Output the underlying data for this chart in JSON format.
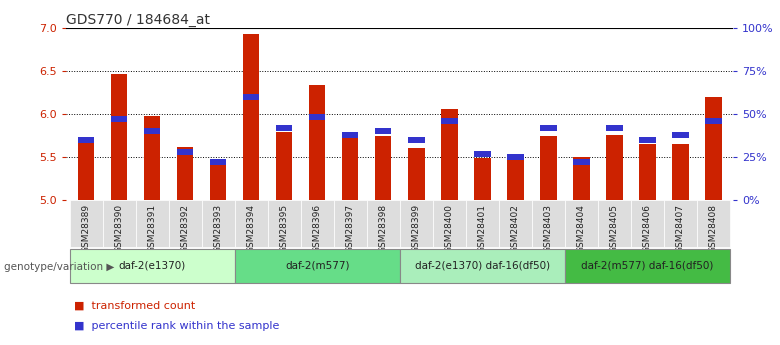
{
  "title": "GDS770 / 184684_at",
  "samples": [
    "GSM28389",
    "GSM28390",
    "GSM28391",
    "GSM28392",
    "GSM28393",
    "GSM28394",
    "GSM28395",
    "GSM28396",
    "GSM28397",
    "GSM28398",
    "GSM28399",
    "GSM28400",
    "GSM28401",
    "GSM28402",
    "GSM28403",
    "GSM28404",
    "GSM28405",
    "GSM28406",
    "GSM28407",
    "GSM28408"
  ],
  "transformed_count": [
    5.68,
    6.46,
    5.97,
    5.62,
    5.44,
    6.93,
    5.79,
    6.33,
    5.75,
    5.74,
    5.6,
    6.06,
    5.49,
    5.51,
    5.74,
    5.5,
    5.76,
    5.65,
    5.65,
    6.2
  ],
  "percentile_rank": [
    35,
    47,
    40,
    28,
    22,
    60,
    42,
    48,
    38,
    40,
    35,
    46,
    27,
    25,
    42,
    22,
    42,
    35,
    38,
    46
  ],
  "ylim_left": [
    5.0,
    7.0
  ],
  "ylim_right": [
    0,
    100
  ],
  "yticks_left": [
    5.0,
    5.5,
    6.0,
    6.5,
    7.0
  ],
  "yticks_right": [
    0,
    25,
    50,
    75,
    100
  ],
  "ytick_labels_right": [
    "0%",
    "25%",
    "50%",
    "75%",
    "100%"
  ],
  "groups": [
    {
      "label": "daf-2(e1370)",
      "start": 0,
      "end": 5,
      "color": "#ccffcc"
    },
    {
      "label": "daf-2(m577)",
      "start": 5,
      "end": 10,
      "color": "#66dd88"
    },
    {
      "label": "daf-2(e1370) daf-16(df50)",
      "start": 10,
      "end": 15,
      "color": "#aaeebb"
    },
    {
      "label": "daf-2(m577) daf-16(df50)",
      "start": 15,
      "end": 20,
      "color": "#44bb44"
    }
  ],
  "bar_color_red": "#cc2200",
  "bar_color_blue": "#3333cc",
  "bar_width": 0.5,
  "bar_base": 5.0,
  "left_axis_color": "#cc2200",
  "right_axis_color": "#3333cc",
  "legend_items": [
    "transformed count",
    "percentile rank within the sample"
  ],
  "legend_colors": [
    "#cc2200",
    "#3333cc"
  ],
  "genotype_label": "genotype/variation"
}
